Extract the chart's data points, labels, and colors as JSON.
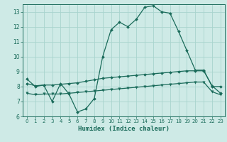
{
  "title": "",
  "xlabel": "Humidex (Indice chaleur)",
  "bg_color": "#ceeae6",
  "line_color": "#1a6b5a",
  "grid_color": "#a8d4ce",
  "xlim": [
    -0.5,
    23.5
  ],
  "ylim": [
    6,
    13.5
  ],
  "yticks": [
    6,
    7,
    8,
    9,
    10,
    11,
    12,
    13
  ],
  "xticks": [
    0,
    1,
    2,
    3,
    4,
    5,
    6,
    7,
    8,
    9,
    10,
    11,
    12,
    13,
    14,
    15,
    16,
    17,
    18,
    19,
    20,
    21,
    22,
    23
  ],
  "curve1_x": [
    0,
    1,
    2,
    3,
    4,
    5,
    6,
    7,
    8,
    9,
    10,
    11,
    12,
    13,
    14,
    15,
    16,
    17,
    18,
    19,
    20,
    21,
    22,
    23
  ],
  "curve1_y": [
    8.5,
    8.0,
    8.1,
    7.0,
    8.2,
    7.5,
    6.3,
    6.5,
    7.2,
    10.0,
    11.8,
    12.3,
    12.0,
    12.5,
    13.3,
    13.4,
    13.0,
    12.9,
    11.7,
    10.4,
    9.1,
    9.1,
    8.0,
    8.0
  ],
  "curve2_x": [
    0,
    1,
    2,
    3,
    4,
    5,
    6,
    7,
    8,
    9,
    10,
    11,
    12,
    13,
    14,
    15,
    16,
    17,
    18,
    19,
    20,
    21,
    22,
    23
  ],
  "curve2_y": [
    8.2,
    8.05,
    8.1,
    8.1,
    8.15,
    8.2,
    8.25,
    8.35,
    8.45,
    8.55,
    8.6,
    8.65,
    8.7,
    8.75,
    8.8,
    8.85,
    8.9,
    8.95,
    9.0,
    9.05,
    9.05,
    9.05,
    8.05,
    7.55
  ],
  "curve3_x": [
    0,
    1,
    2,
    3,
    4,
    5,
    6,
    7,
    8,
    9,
    10,
    11,
    12,
    13,
    14,
    15,
    16,
    17,
    18,
    19,
    20,
    21,
    22,
    23
  ],
  "curve3_y": [
    7.55,
    7.45,
    7.5,
    7.5,
    7.5,
    7.55,
    7.6,
    7.65,
    7.7,
    7.75,
    7.8,
    7.85,
    7.9,
    7.95,
    8.0,
    8.05,
    8.1,
    8.15,
    8.2,
    8.25,
    8.3,
    8.3,
    7.65,
    7.45
  ]
}
